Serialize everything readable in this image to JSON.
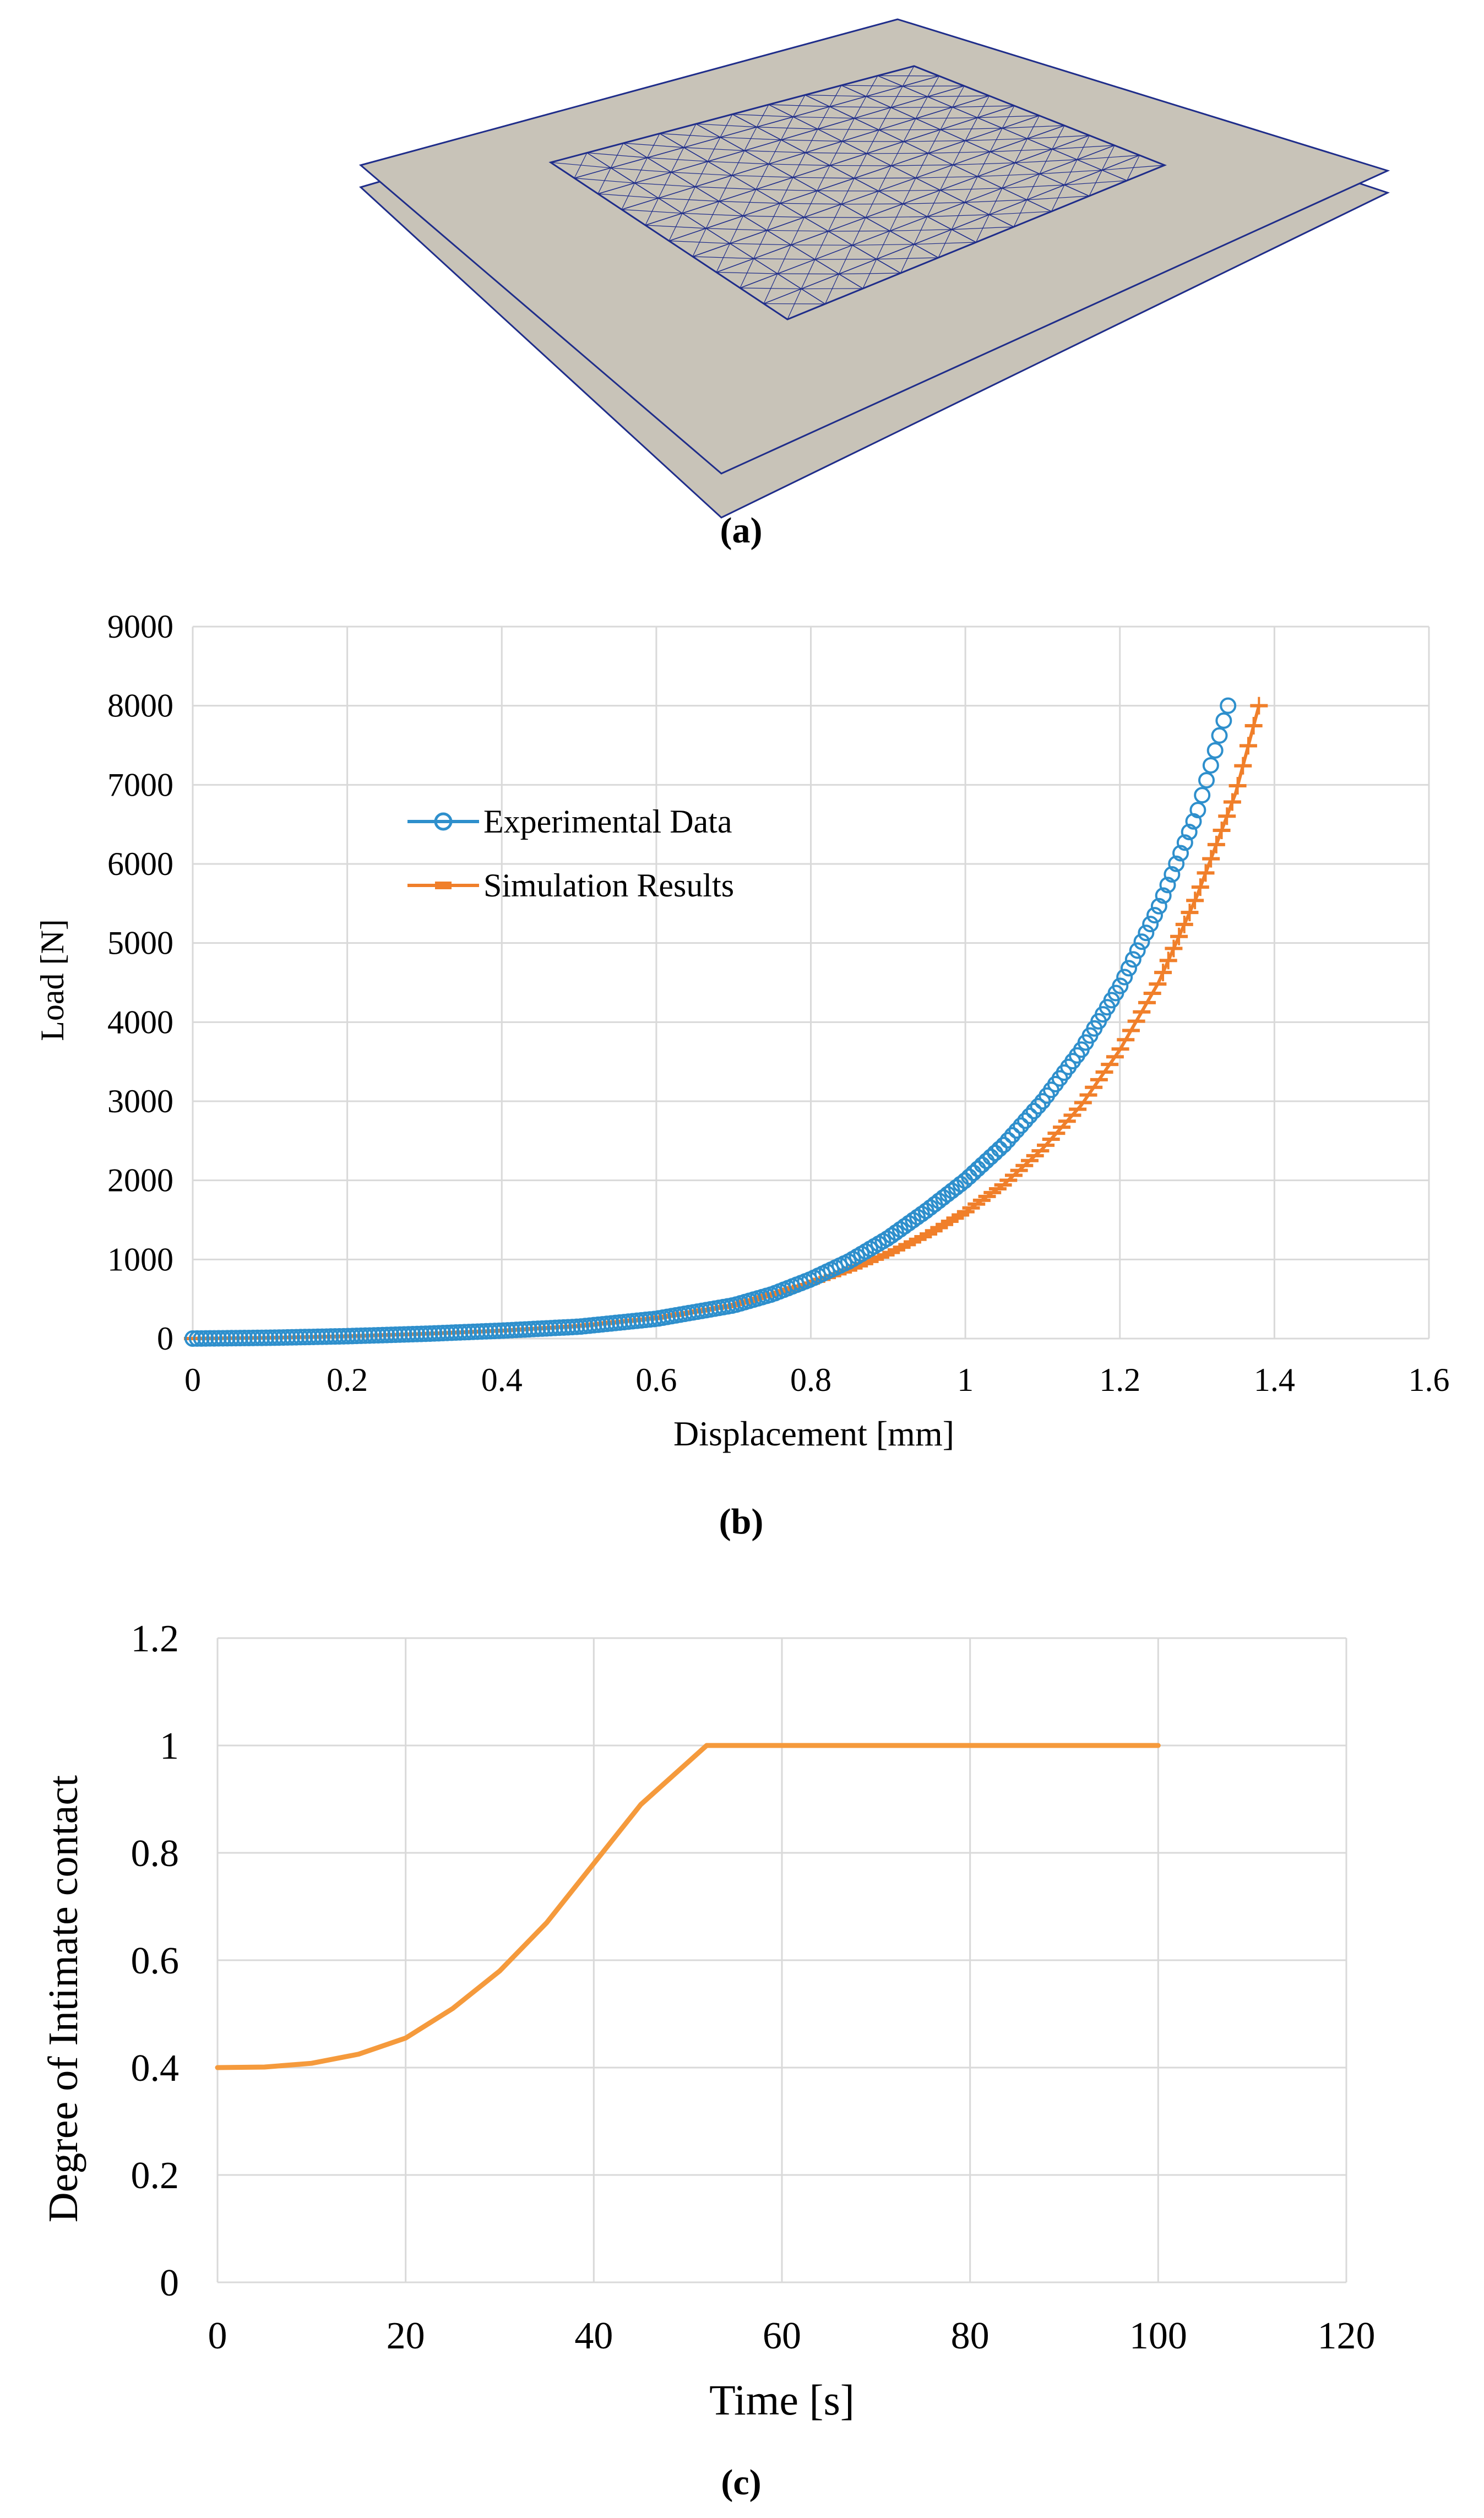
{
  "panel_labels": [
    "(a)",
    "(b)",
    "(c)"
  ],
  "colors": {
    "experimental": "#2e8fcc",
    "simulation": "#f07f2a",
    "contact": "#f59a3c",
    "grid": "#d9d9d9",
    "plate": "#c8c3b8",
    "mesh": "#1f2d8a"
  },
  "chart_data": [
    {
      "type": "scatter",
      "title": "",
      "xlabel": "Displacement [mm]",
      "ylabel": "Load [N]",
      "xlim": [
        0,
        1.6
      ],
      "ylim": [
        0,
        9000
      ],
      "xticks": [
        "0",
        "0.2",
        "0.4",
        "0.6",
        "0.8",
        "1",
        "1.2",
        "1.4",
        "1.6"
      ],
      "yticks": [
        "0",
        "1000",
        "2000",
        "3000",
        "4000",
        "5000",
        "6000",
        "7000",
        "8000",
        "9000"
      ],
      "grid": true,
      "legend_position": "upper-left",
      "series": [
        {
          "name": "Experimental Data",
          "marker": "circle",
          "x": [
            0,
            0.1,
            0.2,
            0.3,
            0.4,
            0.5,
            0.6,
            0.7,
            0.75,
            0.8,
            0.85,
            0.9,
            0.95,
            1.0,
            1.05,
            1.1,
            1.15,
            1.2,
            1.25,
            1.3,
            1.34
          ],
          "y": [
            0,
            10,
            30,
            60,
            100,
            150,
            250,
            420,
            560,
            750,
            980,
            1270,
            1620,
            2000,
            2450,
            3000,
            3650,
            4450,
            5450,
            6650,
            8000
          ]
        },
        {
          "name": "Simulation Results",
          "marker": "dash",
          "x": [
            0,
            0.1,
            0.2,
            0.3,
            0.4,
            0.5,
            0.6,
            0.7,
            0.75,
            0.8,
            0.85,
            0.9,
            0.95,
            1.0,
            1.05,
            1.1,
            1.15,
            1.2,
            1.25,
            1.3,
            1.35,
            1.38
          ],
          "y": [
            0,
            10,
            30,
            60,
            100,
            160,
            260,
            420,
            560,
            700,
            870,
            1070,
            1310,
            1600,
            1950,
            2400,
            2950,
            3650,
            4500,
            5600,
            6900,
            8000
          ]
        }
      ]
    },
    {
      "type": "line",
      "title": "",
      "xlabel": "Time [s]",
      "ylabel": "Degree of Intimate contact",
      "xlim": [
        0,
        120
      ],
      "ylim": [
        0,
        1.2
      ],
      "xticks": [
        "0",
        "20",
        "40",
        "60",
        "80",
        "100",
        "120"
      ],
      "yticks": [
        "0",
        "0.2",
        "0.4",
        "0.6",
        "0.8",
        "1",
        "1.2"
      ],
      "grid": true,
      "series": [
        {
          "name": "Degree of Intimate contact",
          "x": [
            0,
            5,
            10,
            15,
            20,
            25,
            30,
            35,
            40,
            45,
            52,
            60,
            80,
            100
          ],
          "y": [
            0.4,
            0.401,
            0.408,
            0.425,
            0.455,
            0.51,
            0.58,
            0.67,
            0.78,
            0.89,
            1.0,
            1.0,
            1.0,
            1.0
          ]
        }
      ]
    }
  ]
}
